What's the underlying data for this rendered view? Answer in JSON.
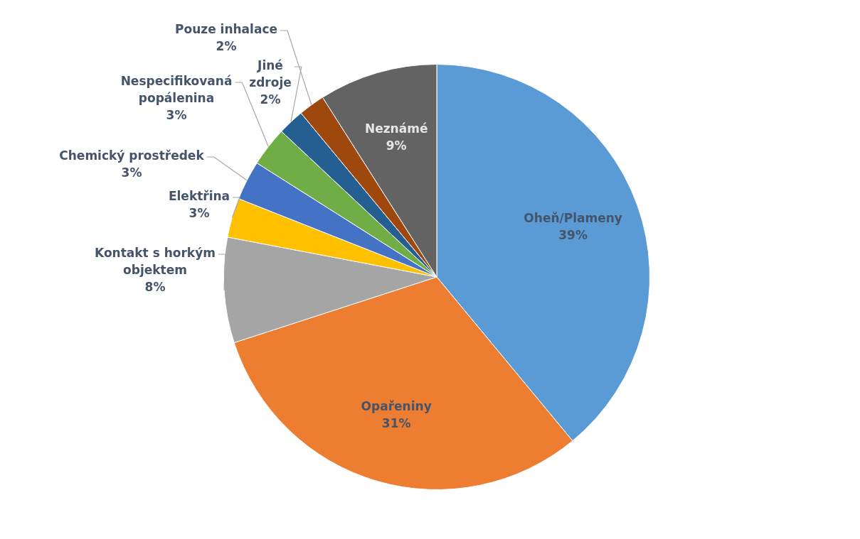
{
  "chart_data": {
    "type": "pie",
    "categories": [
      "Oheň/Plameny",
      "Opařeniny",
      "Kontakt s horkým objektem",
      "Elektřina",
      "Chemický prostředek",
      "Nespecifikovaná popálenina",
      "Jiné zdroje",
      "Pouze inhalace",
      "Neznámé"
    ],
    "values": [
      39,
      31,
      8,
      3,
      3,
      3,
      2,
      2,
      9
    ],
    "colors": [
      "#5b9bd5",
      "#ed7d31",
      "#a5a5a5",
      "#ffc000",
      "#4472c4",
      "#70ad47",
      "#255e91",
      "#9e480e",
      "#636363"
    ],
    "value_labels": [
      "39%",
      "31%",
      "8%",
      "3%",
      "3%",
      "3%",
      "2%",
      "2%",
      "9%"
    ],
    "legend": false
  }
}
